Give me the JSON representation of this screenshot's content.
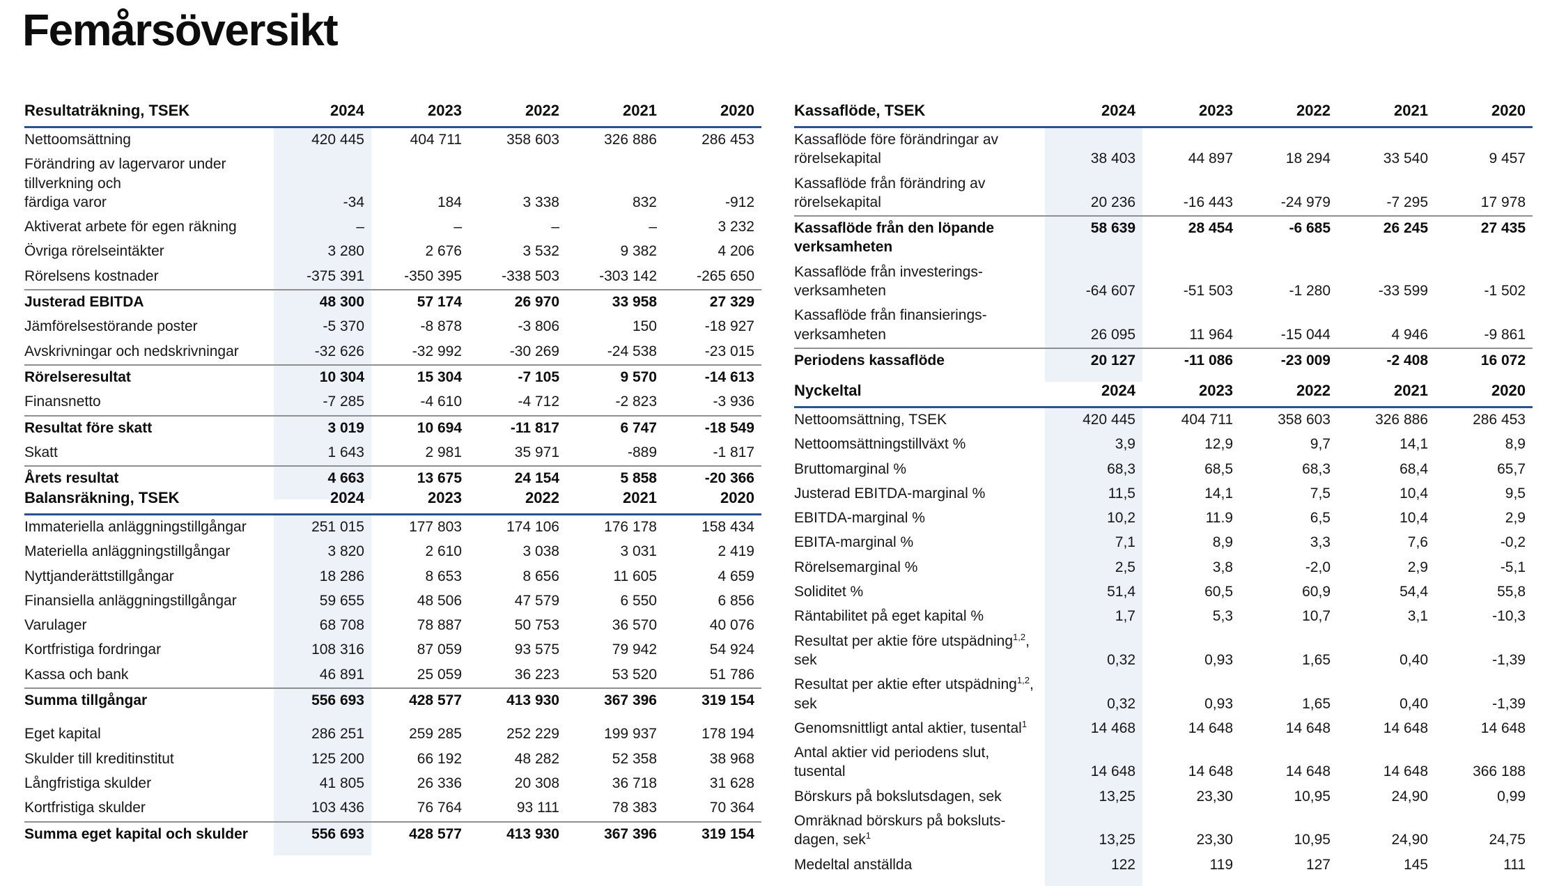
{
  "page": {
    "title": "Femårsöversikt"
  },
  "colors": {
    "accent_blue": "#2a5190",
    "column_highlight": "#edf2f8",
    "rule_gray": "#8f8f8f"
  },
  "tables": [
    {
      "name": "income-statement-table",
      "header": "Resultaträkning, TSEK",
      "label_width": 358,
      "years": [
        "2024",
        "2023",
        "2022",
        "2021",
        "2020"
      ],
      "rows": [
        {
          "label": "Nettoomsättning",
          "values": [
            "420 445",
            "404 711",
            "358 603",
            "326 886",
            "286 453"
          ]
        },
        {
          "label": "Förändring av lagervaror under\ntillverkning och\nfärdiga varor",
          "values": [
            "-34",
            "184",
            "3 338",
            "832",
            "-912"
          ]
        },
        {
          "label": "Aktiverat arbete för egen räkning",
          "values": [
            "–",
            "–",
            "–",
            "–",
            "3 232"
          ]
        },
        {
          "label": "Övriga rörelseintäkter",
          "values": [
            "3 280",
            "2 676",
            "3 532",
            "9 382",
            "4 206"
          ]
        },
        {
          "label": "Rörelsens kostnader",
          "values": [
            "-375 391",
            "-350 395",
            "-338 503",
            "-303 142",
            "-265 650"
          ]
        },
        {
          "label": "Justerad EBITDA",
          "bold": true,
          "rule": true,
          "values": [
            "48 300",
            "57 174",
            "26 970",
            "33 958",
            "27 329"
          ]
        },
        {
          "label": "Jämförelsestörande poster",
          "values": [
            "-5 370",
            "-8 878",
            "-3 806",
            "150",
            "-18 927"
          ]
        },
        {
          "label": "Avskrivningar och nedskrivningar",
          "values": [
            "-32 626",
            "-32 992",
            "-30 269",
            "-24 538",
            "-23 015"
          ]
        },
        {
          "label": "Rörelseresultat",
          "bold": true,
          "rule": true,
          "values": [
            "10 304",
            "15 304",
            "-7 105",
            "9 570",
            "-14 613"
          ]
        },
        {
          "label": "Finansnetto",
          "values": [
            "-7 285",
            "-4 610",
            "-4 712",
            "-2 823",
            "-3 936"
          ]
        },
        {
          "label": "Resultat före skatt",
          "bold": true,
          "rule": true,
          "values": [
            "3 019",
            "10 694",
            "-11 817",
            "6 747",
            "-18 549"
          ]
        },
        {
          "label": "Skatt",
          "values": [
            "1 643",
            "2 981",
            "35 971",
            "-889",
            "-1 817"
          ]
        },
        {
          "label": "Årets resultat",
          "bold": true,
          "rule": true,
          "values": [
            "4 663",
            "13 675",
            "24 154",
            "5 858",
            "-20 366"
          ]
        }
      ]
    },
    {
      "name": "balance-sheet-table",
      "header": "Balansräkning, TSEK",
      "label_width": 358,
      "years": [
        "2024",
        "2023",
        "2022",
        "2021",
        "2020"
      ],
      "rows": [
        {
          "label": "Immateriella anläggningstillgångar",
          "values": [
            "251 015",
            "177 803",
            "174 106",
            "176 178",
            "158 434"
          ]
        },
        {
          "label": "Materiella anläggningstillgångar",
          "values": [
            "3 820",
            "2 610",
            "3 038",
            "3 031",
            "2 419"
          ]
        },
        {
          "label": "Nyttjanderättstillgångar",
          "values": [
            "18 286",
            "8 653",
            "8 656",
            "11 605",
            "4 659"
          ]
        },
        {
          "label": "Finansiella anläggningstillgångar",
          "values": [
            "59 655",
            "48 506",
            "47 579",
            "6 550",
            "6 856"
          ]
        },
        {
          "label": "Varulager",
          "values": [
            "68 708",
            "78 887",
            "50 753",
            "36 570",
            "40 076"
          ]
        },
        {
          "label": "Kortfristiga fordringar",
          "values": [
            "108 316",
            "87 059",
            "93 575",
            "79 942",
            "54 924"
          ]
        },
        {
          "label": "Kassa och bank",
          "values": [
            "46 891",
            "25 059",
            "36 223",
            "53 520",
            "51 786"
          ]
        },
        {
          "label": "Summa tillgångar",
          "bold": true,
          "rule": true,
          "values": [
            "556 693",
            "428 577",
            "413 930",
            "367 396",
            "319 154"
          ]
        },
        {
          "label": "Eget kapital",
          "gap": true,
          "values": [
            "286 251",
            "259 285",
            "252 229",
            "199 937",
            "178 194"
          ]
        },
        {
          "label": "Skulder till kreditinstitut",
          "values": [
            "125 200",
            "66 192",
            "48 282",
            "52 358",
            "38 968"
          ]
        },
        {
          "label": "Långfristiga skulder",
          "values": [
            "41 805",
            "26 336",
            "20 308",
            "36 718",
            "31 628"
          ]
        },
        {
          "label": "Kortfristiga skulder",
          "values": [
            "103 436",
            "76 764",
            "93 111",
            "78 383",
            "70 364"
          ]
        },
        {
          "label": "Summa eget kapital och skulder",
          "bold": true,
          "rule": true,
          "values": [
            "556 693",
            "428 577",
            "413 930",
            "367 396",
            "319 154"
          ]
        }
      ]
    },
    {
      "name": "cash-flow-table",
      "header": "Kassaflöde, TSEK",
      "label_width": 360,
      "years": [
        "2024",
        "2023",
        "2022",
        "2021",
        "2020"
      ],
      "rows": [
        {
          "label": "Kassaflöde före förändringar av\nrörelsekapital",
          "values": [
            "38 403",
            "44 897",
            "18 294",
            "33 540",
            "9 457"
          ]
        },
        {
          "label": "Kassaflöde från förändring av\nrörelsekapital",
          "values": [
            "20 236",
            "-16 443",
            "-24 979",
            "-7 295",
            "17 978"
          ]
        },
        {
          "label": "Kassaflöde från den löpande\nverksamheten",
          "bold": true,
          "rule": true,
          "vtop": true,
          "values": [
            "58 639",
            "28 454",
            "-6 685",
            "26 245",
            "27 435"
          ]
        },
        {
          "label": "Kassaflöde från investerings-\nverksamheten",
          "values": [
            "-64 607",
            "-51 503",
            "-1 280",
            "-33 599",
            "-1 502"
          ]
        },
        {
          "label": "Kassaflöde från finansierings-\nverksamheten",
          "values": [
            "26 095",
            "11 964",
            "-15 044",
            "4 946",
            "-9 861"
          ]
        },
        {
          "label": "Periodens kassaflöde",
          "bold": true,
          "rule": true,
          "values": [
            "20 127",
            "-11 086",
            "-23 009",
            "-2 408",
            "16 072"
          ]
        }
      ]
    },
    {
      "name": "key-ratios-table",
      "header": "Nyckeltal",
      "label_width": 360,
      "years": [
        "2024",
        "2023",
        "2022",
        "2021",
        "2020"
      ],
      "rows": [
        {
          "label": "Nettoomsättning, TSEK",
          "values": [
            "420 445",
            "404 711",
            "358 603",
            "326 886",
            "286 453"
          ]
        },
        {
          "label": "Nettoomsättningstillväxt %",
          "values": [
            "3,9",
            "12,9",
            "9,7",
            "14,1",
            "8,9"
          ]
        },
        {
          "label": "Bruttomarginal %",
          "values": [
            "68,3",
            "68,5",
            "68,3",
            "68,4",
            "65,7"
          ]
        },
        {
          "label": "Justerad EBITDA-marginal %",
          "values": [
            "11,5",
            "14,1",
            "7,5",
            "10,4",
            "9,5"
          ]
        },
        {
          "label": "EBITDA-marginal %",
          "values": [
            "10,2",
            "11.9",
            "6,5",
            "10,4",
            "2,9"
          ]
        },
        {
          "label": "EBITA-marginal %",
          "values": [
            "7,1",
            "8,9",
            "3,3",
            "7,6",
            "-0,2"
          ]
        },
        {
          "label": "Rörelsemarginal %",
          "values": [
            "2,5",
            "3,8",
            "-2,0",
            "2,9",
            "-5,1"
          ]
        },
        {
          "label": "Soliditet %",
          "values": [
            "51,4",
            "60,5",
            "60,9",
            "54,4",
            "55,8"
          ]
        },
        {
          "label": "Räntabilitet på eget kapital %",
          "values": [
            "1,7",
            "5,3",
            "10,7",
            "3,1",
            "-10,3"
          ]
        },
        {
          "label": "Resultat per aktie före utspädning{^1,2},\nsek",
          "values": [
            "0,32",
            "0,93",
            "1,65",
            "0,40",
            "-1,39"
          ]
        },
        {
          "label": "Resultat per aktie efter utspädning{^1,2},\nsek",
          "values": [
            "0,32",
            "0,93",
            "1,65",
            "0,40",
            "-1,39"
          ]
        },
        {
          "label": "Genomsnittligt antal aktier, tusental{^1}",
          "values": [
            "14 468",
            "14 648",
            "14 648",
            "14 648",
            "14 648"
          ]
        },
        {
          "label": "Antal aktier vid periodens slut,\ntusental",
          "values": [
            "14 648",
            "14 648",
            "14 648",
            "14 648",
            "366 188"
          ]
        },
        {
          "label": "Börskurs på bokslutsdagen, sek",
          "values": [
            "13,25",
            "23,30",
            "10,95",
            "24,90",
            "0,99"
          ]
        },
        {
          "label": "Omräknad börskurs på boksluts-\ndagen, sek{^1}",
          "values": [
            "13,25",
            "23,30",
            "10,95",
            "24,90",
            "24,75"
          ]
        },
        {
          "label": "Medeltal anställda",
          "values": [
            "122",
            "119",
            "127",
            "145",
            "111"
          ]
        }
      ]
    }
  ]
}
